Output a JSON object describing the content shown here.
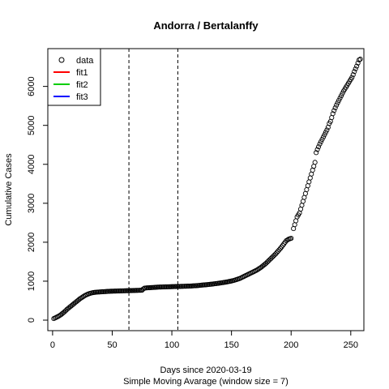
{
  "chart_data": {
    "type": "scatter",
    "title": "Andorra / Bertalanffy",
    "xlabel": "Days since 2020-03-19",
    "subtitle": "Simple Moving Avarage (window size = 7)",
    "ylabel": "Cumulative Cases",
    "xlim": [
      -4,
      261
    ],
    "ylim": [
      -270,
      6970
    ],
    "xticks": [
      0,
      50,
      100,
      150,
      200,
      250
    ],
    "yticks": [
      0,
      1000,
      2000,
      3000,
      4000,
      5000,
      6000
    ],
    "vlines": [
      64,
      105
    ],
    "legend": {
      "position": "top-left",
      "entries": [
        {
          "label": "data",
          "type": "point",
          "color": "#000000"
        },
        {
          "label": "fit1",
          "type": "line",
          "color": "#ff0000"
        },
        {
          "label": "fit2",
          "type": "line",
          "color": "#00cd00"
        },
        {
          "label": "fit3",
          "type": "line",
          "color": "#0000ff"
        }
      ]
    },
    "series": [
      {
        "name": "data",
        "points": [
          [
            1,
            40
          ],
          [
            2,
            55
          ],
          [
            3,
            70
          ],
          [
            4,
            85
          ],
          [
            5,
            100
          ],
          [
            6,
            120
          ],
          [
            7,
            140
          ],
          [
            8,
            165
          ],
          [
            9,
            190
          ],
          [
            10,
            215
          ],
          [
            11,
            245
          ],
          [
            12,
            275
          ],
          [
            13,
            300
          ],
          [
            14,
            325
          ],
          [
            15,
            350
          ],
          [
            16,
            375
          ],
          [
            17,
            400
          ],
          [
            18,
            425
          ],
          [
            19,
            450
          ],
          [
            20,
            475
          ],
          [
            21,
            500
          ],
          [
            22,
            525
          ],
          [
            23,
            550
          ],
          [
            24,
            570
          ],
          [
            25,
            590
          ],
          [
            26,
            610
          ],
          [
            27,
            630
          ],
          [
            28,
            645
          ],
          [
            29,
            660
          ],
          [
            30,
            672
          ],
          [
            31,
            683
          ],
          [
            32,
            692
          ],
          [
            33,
            700
          ],
          [
            34,
            706
          ],
          [
            35,
            711
          ],
          [
            36,
            715
          ],
          [
            37,
            718
          ],
          [
            38,
            721
          ],
          [
            39,
            723
          ],
          [
            40,
            725
          ],
          [
            41,
            727
          ],
          [
            42,
            729
          ],
          [
            43,
            731
          ],
          [
            44,
            733
          ],
          [
            45,
            735
          ],
          [
            46,
            737
          ],
          [
            47,
            739
          ],
          [
            48,
            741
          ],
          [
            49,
            742
          ],
          [
            50,
            743
          ],
          [
            51,
            744
          ],
          [
            52,
            745
          ],
          [
            53,
            746
          ],
          [
            54,
            747
          ],
          [
            55,
            748
          ],
          [
            56,
            749
          ],
          [
            57,
            750
          ],
          [
            58,
            751
          ],
          [
            59,
            752
          ],
          [
            60,
            753
          ],
          [
            61,
            754
          ],
          [
            62,
            755
          ],
          [
            63,
            756
          ],
          [
            64,
            757
          ],
          [
            65,
            758
          ],
          [
            66,
            759
          ],
          [
            67,
            760
          ],
          [
            68,
            761
          ],
          [
            69,
            762
          ],
          [
            70,
            763
          ],
          [
            71,
            764
          ],
          [
            72,
            765
          ],
          [
            73,
            766
          ],
          [
            74,
            767
          ],
          [
            75,
            768
          ],
          [
            76,
            800
          ],
          [
            77,
            820
          ],
          [
            78,
            825
          ],
          [
            79,
            828
          ],
          [
            80,
            830
          ],
          [
            81,
            832
          ],
          [
            82,
            834
          ],
          [
            83,
            836
          ],
          [
            84,
            838
          ],
          [
            85,
            840
          ],
          [
            86,
            842
          ],
          [
            87,
            844
          ],
          [
            88,
            846
          ],
          [
            89,
            848
          ],
          [
            90,
            849
          ],
          [
            91,
            850
          ],
          [
            92,
            851
          ],
          [
            93,
            852
          ],
          [
            94,
            853
          ],
          [
            95,
            854
          ],
          [
            96,
            855
          ],
          [
            97,
            856
          ],
          [
            98,
            857
          ],
          [
            99,
            858
          ],
          [
            100,
            859
          ],
          [
            101,
            860
          ],
          [
            102,
            861
          ],
          [
            103,
            862
          ],
          [
            104,
            863
          ],
          [
            105,
            864
          ],
          [
            106,
            865
          ],
          [
            107,
            866
          ],
          [
            108,
            867
          ],
          [
            109,
            868
          ],
          [
            110,
            869
          ],
          [
            111,
            870
          ],
          [
            112,
            871
          ],
          [
            113,
            872
          ],
          [
            114,
            873
          ],
          [
            115,
            874
          ],
          [
            116,
            876
          ],
          [
            117,
            878
          ],
          [
            118,
            880
          ],
          [
            119,
            882
          ],
          [
            120,
            884
          ],
          [
            121,
            886
          ],
          [
            122,
            889
          ],
          [
            123,
            892
          ],
          [
            124,
            895
          ],
          [
            125,
            898
          ],
          [
            126,
            901
          ],
          [
            127,
            904
          ],
          [
            128,
            907
          ],
          [
            129,
            910
          ],
          [
            130,
            913
          ],
          [
            131,
            916
          ],
          [
            132,
            919
          ],
          [
            133,
            922
          ],
          [
            134,
            926
          ],
          [
            135,
            930
          ],
          [
            136,
            934
          ],
          [
            137,
            938
          ],
          [
            138,
            942
          ],
          [
            139,
            946
          ],
          [
            140,
            950
          ],
          [
            141,
            955
          ],
          [
            142,
            960
          ],
          [
            143,
            965
          ],
          [
            144,
            970
          ],
          [
            145,
            975
          ],
          [
            146,
            980
          ],
          [
            147,
            986
          ],
          [
            148,
            992
          ],
          [
            149,
            998
          ],
          [
            150,
            1005
          ],
          [
            151,
            1012
          ],
          [
            152,
            1020
          ],
          [
            153,
            1030
          ],
          [
            154,
            1040
          ],
          [
            155,
            1050
          ],
          [
            156,
            1060
          ],
          [
            157,
            1070
          ],
          [
            158,
            1085
          ],
          [
            159,
            1100
          ],
          [
            160,
            1115
          ],
          [
            161,
            1130
          ],
          [
            162,
            1145
          ],
          [
            163,
            1160
          ],
          [
            164,
            1175
          ],
          [
            165,
            1190
          ],
          [
            166,
            1205
          ],
          [
            167,
            1220
          ],
          [
            168,
            1235
          ],
          [
            169,
            1250
          ],
          [
            170,
            1265
          ],
          [
            171,
            1280
          ],
          [
            172,
            1300
          ],
          [
            173,
            1320
          ],
          [
            174,
            1340
          ],
          [
            175,
            1360
          ],
          [
            176,
            1385
          ],
          [
            177,
            1410
          ],
          [
            178,
            1435
          ],
          [
            179,
            1460
          ],
          [
            180,
            1490
          ],
          [
            181,
            1520
          ],
          [
            182,
            1550
          ],
          [
            183,
            1580
          ],
          [
            184,
            1610
          ],
          [
            185,
            1640
          ],
          [
            186,
            1670
          ],
          [
            187,
            1700
          ],
          [
            188,
            1735
          ],
          [
            189,
            1770
          ],
          [
            190,
            1805
          ],
          [
            191,
            1840
          ],
          [
            192,
            1880
          ],
          [
            193,
            1920
          ],
          [
            194,
            1960
          ],
          [
            195,
            2000
          ],
          [
            196,
            2040
          ],
          [
            197,
            2060
          ],
          [
            198,
            2080
          ],
          [
            199,
            2090
          ],
          [
            200,
            2100
          ],
          [
            202,
            2350
          ],
          [
            203,
            2450
          ],
          [
            204,
            2550
          ],
          [
            205,
            2650
          ],
          [
            206,
            2700
          ],
          [
            207,
            2750
          ],
          [
            208,
            2850
          ],
          [
            209,
            2950
          ],
          [
            210,
            3050
          ],
          [
            211,
            3150
          ],
          [
            212,
            3250
          ],
          [
            213,
            3350
          ],
          [
            214,
            3450
          ],
          [
            215,
            3550
          ],
          [
            216,
            3650
          ],
          [
            217,
            3750
          ],
          [
            218,
            3850
          ],
          [
            219,
            3950
          ],
          [
            220,
            4050
          ],
          [
            221,
            4300
          ],
          [
            222,
            4380
          ],
          [
            223,
            4450
          ],
          [
            224,
            4520
          ],
          [
            225,
            4580
          ],
          [
            226,
            4640
          ],
          [
            227,
            4700
          ],
          [
            228,
            4760
          ],
          [
            229,
            4820
          ],
          [
            230,
            4880
          ],
          [
            231,
            4950
          ],
          [
            232,
            5050
          ],
          [
            233,
            5100
          ],
          [
            234,
            5200
          ],
          [
            235,
            5300
          ],
          [
            236,
            5380
          ],
          [
            237,
            5450
          ],
          [
            238,
            5520
          ],
          [
            239,
            5580
          ],
          [
            240,
            5640
          ],
          [
            241,
            5700
          ],
          [
            242,
            5760
          ],
          [
            243,
            5820
          ],
          [
            244,
            5880
          ],
          [
            245,
            5930
          ],
          [
            246,
            5980
          ],
          [
            247,
            6030
          ],
          [
            248,
            6080
          ],
          [
            249,
            6130
          ],
          [
            250,
            6180
          ],
          [
            251,
            6230
          ],
          [
            252,
            6300
          ],
          [
            253,
            6380
          ],
          [
            254,
            6450
          ],
          [
            255,
            6520
          ],
          [
            256,
            6600
          ],
          [
            257,
            6680
          ],
          [
            258,
            6700
          ]
        ]
      }
    ]
  }
}
